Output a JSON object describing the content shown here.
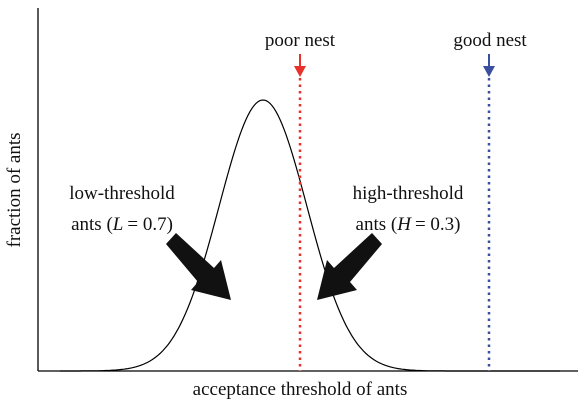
{
  "axes": {
    "x_label": "acceptance threshold of ants",
    "y_label": "fraction of ants"
  },
  "markers": [
    {
      "label": "poor nest",
      "color": "#e8312a"
    },
    {
      "label": "good nest",
      "color": "#3a4fa0"
    }
  ],
  "annotations": [
    {
      "line1": "low-threshold",
      "prefix": "ants (",
      "variable": "L",
      "rest": "= 0.7)"
    },
    {
      "line1": "high-threshold",
      "prefix": "ants (",
      "variable": "H",
      "rest": "= 0.3)"
    }
  ]
}
